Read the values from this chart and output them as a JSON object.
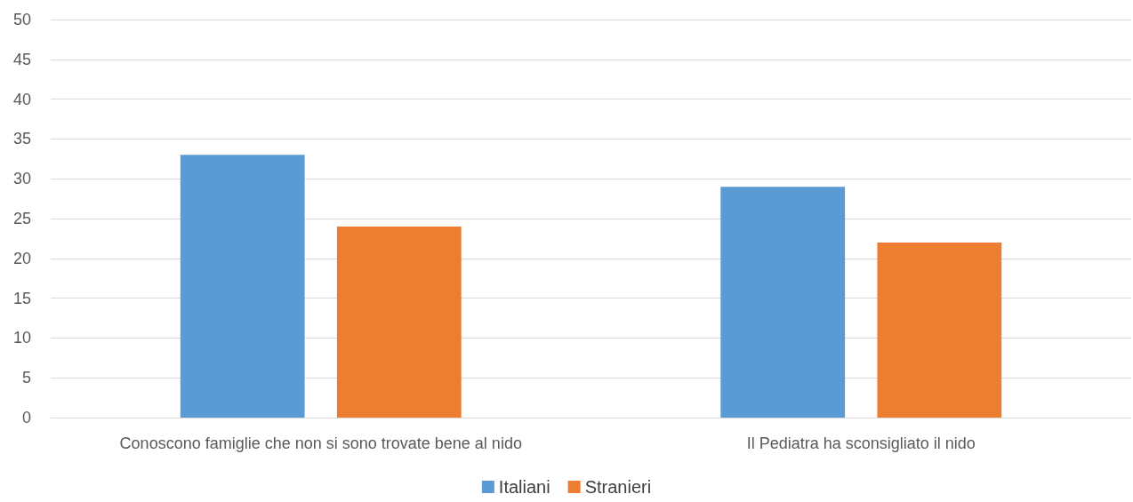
{
  "chart_data": {
    "type": "bar",
    "categories": [
      "Conoscono famiglie che non si sono trovate bene al nido",
      "Il Pediatra ha sconsigliato il nido"
    ],
    "series": [
      {
        "name": "Italiani",
        "color": "#5b9bd5",
        "values": [
          33,
          29
        ]
      },
      {
        "name": "Stranieri",
        "color": "#ed7d31",
        "values": [
          24,
          22
        ]
      }
    ],
    "ylim": [
      0,
      50
    ],
    "yticks": [
      0,
      5,
      10,
      15,
      20,
      25,
      30,
      35,
      40,
      45,
      50
    ],
    "grid": "y",
    "legend": "bottom"
  }
}
